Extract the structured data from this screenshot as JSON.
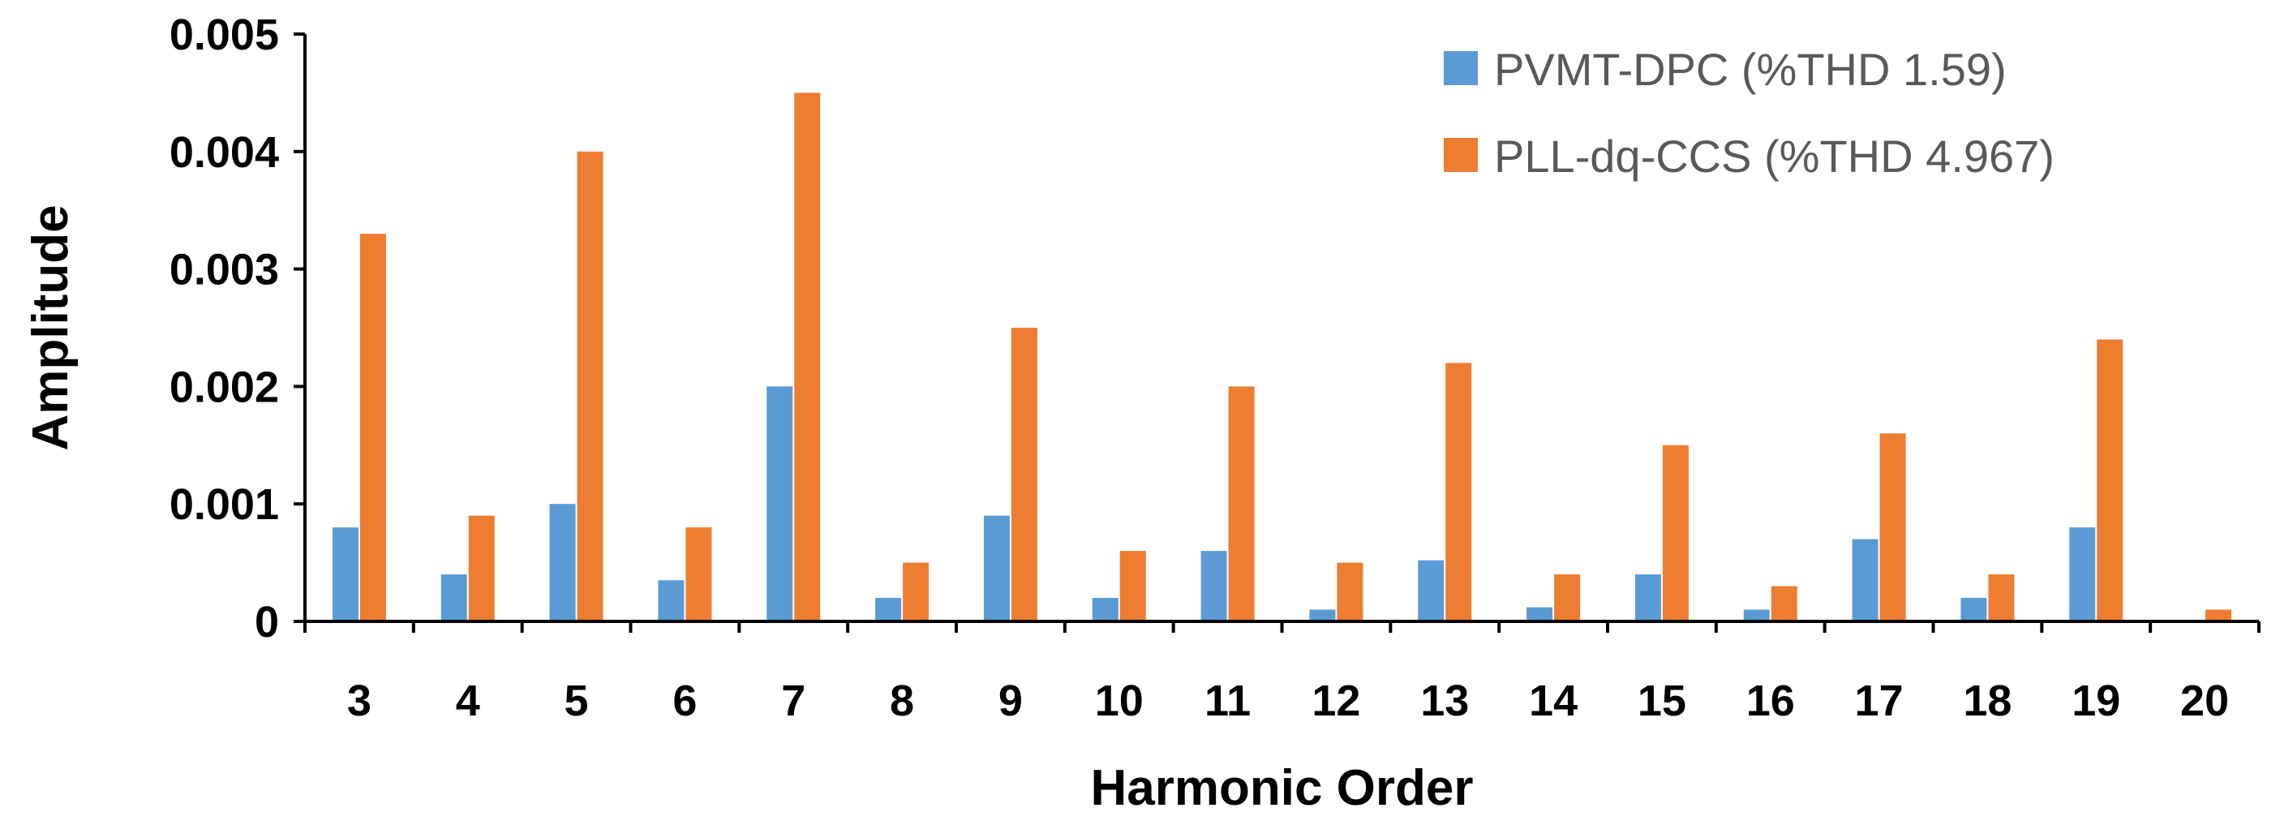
{
  "chart_data": {
    "type": "bar",
    "title": "",
    "xlabel": "Harmonic Order",
    "ylabel": "Amplitude",
    "ylim": [
      0,
      0.005
    ],
    "yticks": [
      "0",
      "0.001",
      "0.002",
      "0.003",
      "0.004",
      "0.005"
    ],
    "categories": [
      "3",
      "4",
      "5",
      "6",
      "7",
      "8",
      "9",
      "10",
      "11",
      "12",
      "13",
      "14",
      "15",
      "16",
      "17",
      "18",
      "19",
      "20"
    ],
    "series": [
      {
        "name": "PVMT-DPC (%THD 1.59)",
        "color": "#5B9BD5",
        "values": [
          0.0008,
          0.0004,
          0.001,
          0.00035,
          0.002,
          0.0002,
          0.0009,
          0.0002,
          0.0006,
          0.0001,
          0.00052,
          0.00012,
          0.0004,
          0.0001,
          0.0007,
          0.0002,
          0.0008,
          0
        ]
      },
      {
        "name": "PLL-dq-CCS (%THD 4.967)",
        "color": "#ED7D31",
        "values": [
          0.0033,
          0.0009,
          0.004,
          0.0008,
          0.0045,
          0.0005,
          0.0025,
          0.0006,
          0.002,
          0.0005,
          0.0022,
          0.0004,
          0.0015,
          0.0003,
          0.0016,
          0.0004,
          0.0024,
          0.0001
        ]
      }
    ],
    "grid": false,
    "legend_position": "top-right"
  }
}
